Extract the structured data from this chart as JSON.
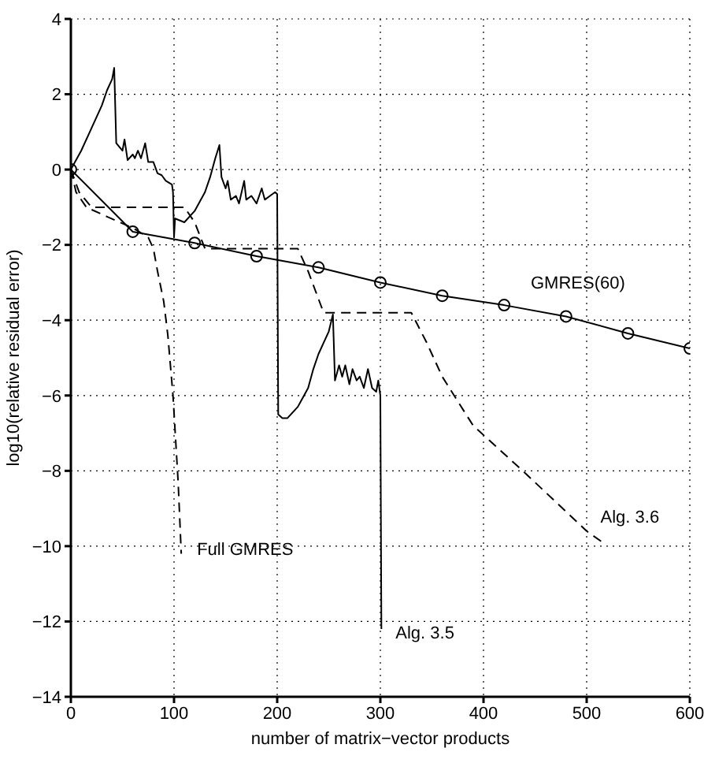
{
  "chart_data": {
    "type": "line",
    "xlabel": "number of matrix−vector products",
    "ylabel": "log10(relative residual error)",
    "xlim": [
      0,
      600
    ],
    "ylim": [
      -14,
      4
    ],
    "xticks": [
      0,
      100,
      200,
      300,
      400,
      500,
      600
    ],
    "yticks": [
      -14,
      -12,
      -10,
      -8,
      -6,
      -4,
      -2,
      0,
      2,
      4
    ],
    "grid": true,
    "legend": false,
    "series": [
      {
        "name": "GMRES(60)",
        "color": "#000000",
        "marker": "circle",
        "line_style": "solid",
        "x": [
          0,
          60,
          120,
          180,
          240,
          300,
          360,
          420,
          480,
          540,
          600
        ],
        "values": [
          0,
          -1.65,
          -1.95,
          -2.3,
          -2.6,
          -3.0,
          -3.35,
          -3.6,
          -3.9,
          -4.35,
          -4.75
        ]
      },
      {
        "name": "Full GMRES",
        "color": "#000000",
        "marker": "none",
        "line_style": "dashed",
        "x": [
          0,
          5,
          15,
          35,
          60,
          75,
          80,
          84,
          90,
          94,
          99,
          104,
          107
        ],
        "values": [
          0,
          -0.6,
          -1.0,
          -1.25,
          -1.55,
          -1.8,
          -2.1,
          -2.7,
          -3.5,
          -4.4,
          -6.0,
          -8.3,
          -10.2
        ]
      },
      {
        "name": "Alg. 3.6",
        "color": "#000000",
        "marker": "none",
        "line_style": "dashed",
        "x": [
          0,
          8,
          20,
          110,
          120,
          130,
          220,
          230,
          245,
          330,
          345,
          360,
          390,
          440,
          500,
          518
        ],
        "values": [
          0,
          -0.6,
          -1.0,
          -1.0,
          -1.4,
          -2.1,
          -2.1,
          -2.7,
          -3.8,
          -3.8,
          -4.6,
          -5.5,
          -6.8,
          -8.05,
          -9.6,
          -9.95
        ]
      },
      {
        "name": "Alg. 3.5",
        "color": "#000000",
        "marker": "none",
        "line_style": "solid",
        "x": [
          0,
          10,
          20,
          30,
          35,
          40,
          42,
          44,
          50,
          52,
          55,
          60,
          62,
          65,
          68,
          72,
          75,
          80,
          84,
          88,
          92,
          98,
          99,
          100,
          101,
          110,
          120,
          130,
          135,
          140,
          144,
          146,
          150,
          152,
          155,
          160,
          163,
          168,
          170,
          175,
          180,
          185,
          188,
          193,
          198,
          200,
          201,
          205,
          210,
          220,
          230,
          235,
          240,
          245,
          250,
          254,
          256,
          260,
          263,
          266,
          270,
          273,
          277,
          280,
          284,
          288,
          292,
          296,
          298,
          300,
          301
        ],
        "values": [
          0,
          0.5,
          1.1,
          1.7,
          2.1,
          2.4,
          2.7,
          0.7,
          0.5,
          0.8,
          0.25,
          0.4,
          0.3,
          0.5,
          0.3,
          0.7,
          0.2,
          0.2,
          -0.1,
          -0.15,
          -0.3,
          -0.4,
          -0.6,
          -1.8,
          -1.3,
          -1.4,
          -1.1,
          -0.6,
          -0.2,
          0.3,
          0.65,
          -0.2,
          -0.5,
          -0.3,
          -0.8,
          -0.7,
          -0.9,
          -0.3,
          -0.8,
          -0.7,
          -0.9,
          -0.5,
          -0.8,
          -0.7,
          -0.6,
          -0.65,
          -6.5,
          -6.6,
          -6.6,
          -6.3,
          -5.8,
          -5.3,
          -4.9,
          -4.6,
          -4.3,
          -3.85,
          -5.6,
          -5.2,
          -5.5,
          -5.2,
          -5.7,
          -5.3,
          -5.6,
          -5.5,
          -5.8,
          -5.3,
          -5.8,
          -5.9,
          -5.6,
          -6.0,
          -12.2
        ]
      }
    ]
  }
}
